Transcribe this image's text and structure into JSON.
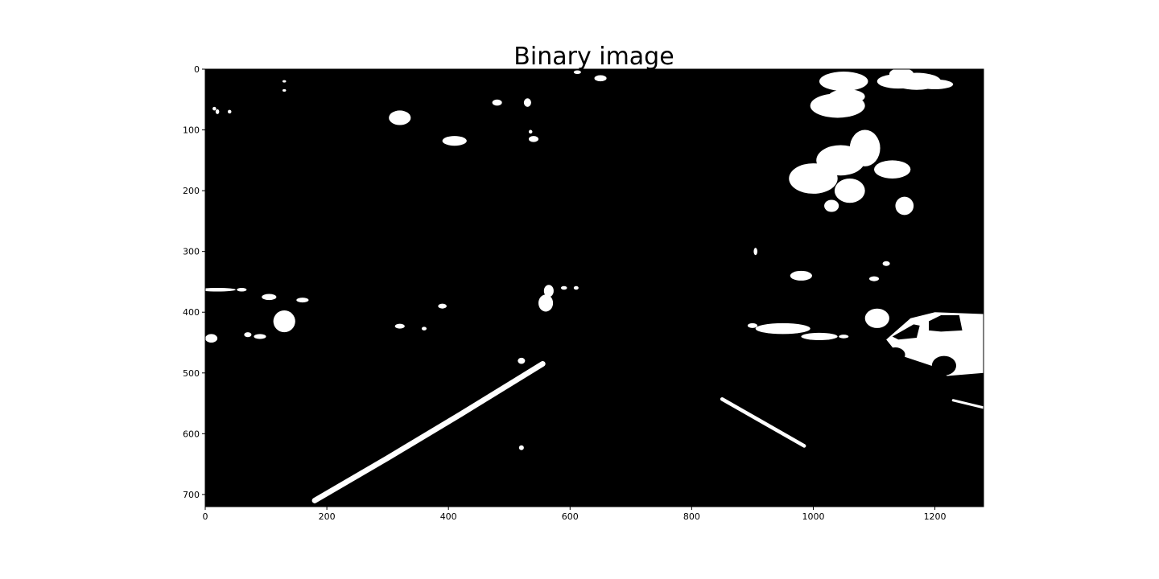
{
  "chart_data": {
    "type": "heatmap",
    "title": "Binary image",
    "xlabel": "",
    "ylabel": "",
    "xlim": [
      0,
      1280
    ],
    "ylim": [
      720,
      0
    ],
    "y_inverted": true,
    "x_ticks": [
      "0",
      "200",
      "400",
      "600",
      "800",
      "1000",
      "1200"
    ],
    "y_ticks": [
      "0",
      "100",
      "200",
      "300",
      "400",
      "500",
      "600",
      "700"
    ],
    "x_tick_values": [
      0,
      200,
      400,
      600,
      800,
      1000,
      1200
    ],
    "y_tick_values": [
      0,
      100,
      200,
      300,
      400,
      500,
      600,
      700
    ],
    "colormap": "gray",
    "colors": {
      "background": "#000000",
      "foreground": "#ffffff",
      "axes": "#000000"
    },
    "grid": false,
    "lane_lines": [
      {
        "name": "left-lane-line",
        "points": [
          [
            180,
            710
          ],
          [
            300,
            640
          ],
          [
            420,
            568
          ],
          [
            555,
            485
          ]
        ],
        "width": 9
      },
      {
        "name": "right-lane-line",
        "points": [
          [
            850,
            543
          ],
          [
            915,
            580
          ],
          [
            985,
            620
          ]
        ],
        "width": 6
      }
    ],
    "edge_lines": [
      {
        "name": "right-edge-segment",
        "points": [
          [
            1230,
            545
          ],
          [
            1280,
            557
          ]
        ],
        "width": 4
      }
    ],
    "blobs": [
      [
        1050,
        20,
        40,
        16
      ],
      [
        1040,
        60,
        45,
        20
      ],
      [
        1055,
        45,
        30,
        12
      ],
      [
        1170,
        20,
        40,
        14
      ],
      [
        1145,
        8,
        20,
        10
      ],
      [
        1200,
        25,
        30,
        8
      ],
      [
        1000,
        180,
        40,
        25
      ],
      [
        1045,
        150,
        40,
        25
      ],
      [
        1085,
        130,
        25,
        30
      ],
      [
        1060,
        200,
        25,
        20
      ],
      [
        1130,
        165,
        30,
        15
      ],
      [
        1150,
        225,
        15,
        15
      ],
      [
        1030,
        225,
        12,
        10
      ],
      [
        1140,
        20,
        35,
        12
      ],
      [
        980,
        340,
        18,
        8
      ],
      [
        1120,
        320,
        6,
        4
      ],
      [
        1100,
        345,
        8,
        4
      ],
      [
        905,
        300,
        3,
        6
      ],
      [
        900,
        422,
        8,
        4
      ],
      [
        950,
        427,
        45,
        9
      ],
      [
        1010,
        440,
        30,
        6
      ],
      [
        1050,
        440,
        8,
        3
      ],
      [
        1105,
        410,
        20,
        16
      ],
      [
        530,
        55,
        6,
        7
      ],
      [
        480,
        55,
        8,
        5
      ],
      [
        650,
        15,
        10,
        5
      ],
      [
        612,
        5,
        6,
        3
      ],
      [
        320,
        80,
        18,
        12
      ],
      [
        410,
        118,
        20,
        8
      ],
      [
        540,
        115,
        8,
        5
      ],
      [
        535,
        103,
        3,
        3
      ],
      [
        130,
        20,
        3,
        2
      ],
      [
        130,
        35,
        3,
        2
      ],
      [
        20,
        70,
        3,
        4
      ],
      [
        40,
        70,
        3,
        3
      ],
      [
        15,
        65,
        3,
        3
      ],
      [
        20,
        363,
        30,
        3
      ],
      [
        60,
        363,
        8,
        3
      ],
      [
        105,
        375,
        12,
        5
      ],
      [
        160,
        380,
        10,
        4
      ],
      [
        130,
        415,
        18,
        18
      ],
      [
        90,
        440,
        10,
        4
      ],
      [
        70,
        437,
        6,
        4
      ],
      [
        10,
        443,
        10,
        7
      ],
      [
        390,
        390,
        7,
        4
      ],
      [
        320,
        423,
        8,
        4
      ],
      [
        360,
        427,
        4,
        3
      ],
      [
        560,
        385,
        12,
        14
      ],
      [
        565,
        365,
        8,
        10
      ],
      [
        590,
        360,
        5,
        3
      ],
      [
        610,
        360,
        4,
        3
      ],
      [
        520,
        480,
        6,
        5
      ],
      [
        520,
        623,
        4,
        4
      ]
    ],
    "car": {
      "body": [
        [
          1120,
          445
        ],
        [
          1160,
          410
        ],
        [
          1200,
          400
        ],
        [
          1280,
          403
        ],
        [
          1280,
          500
        ],
        [
          1220,
          505
        ],
        [
          1200,
          490
        ],
        [
          1140,
          470
        ]
      ],
      "holes": [
        [
          [
            1190,
            415
          ],
          [
            1210,
            405
          ],
          [
            1240,
            405
          ],
          [
            1245,
            430
          ],
          [
            1210,
            432
          ],
          [
            1190,
            430
          ]
        ],
        [
          [
            1130,
            440
          ],
          [
            1165,
            420
          ],
          [
            1175,
            422
          ],
          [
            1170,
            442
          ],
          [
            1140,
            445
          ]
        ]
      ],
      "wheels": [
        [
          1215,
          488,
          20,
          16
        ],
        [
          1135,
          470,
          16,
          12
        ]
      ]
    }
  }
}
